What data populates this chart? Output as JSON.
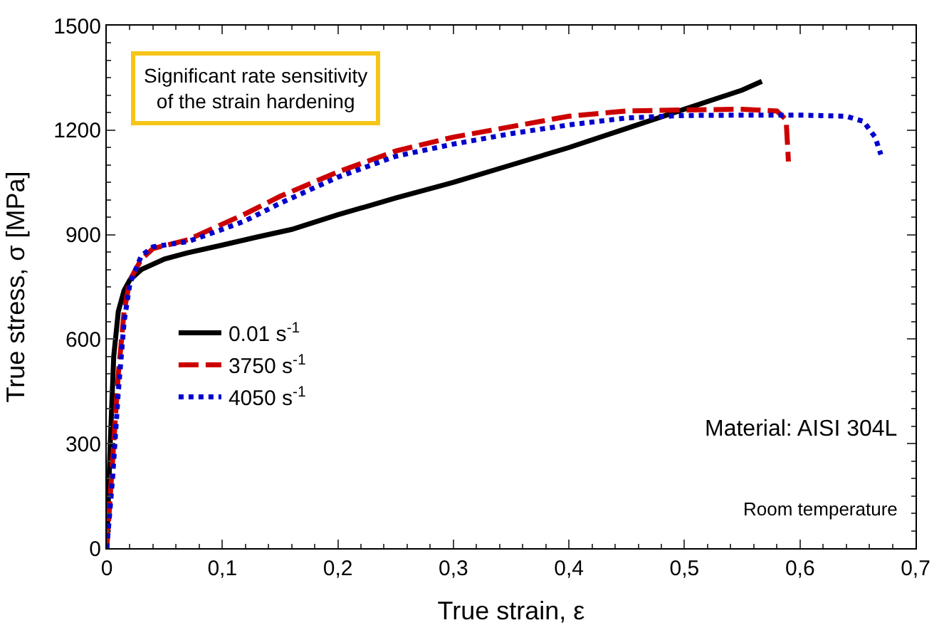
{
  "chart_data": {
    "type": "line",
    "xlabel": "True strain, ε",
    "ylabel": "True stress, σ [MPa]",
    "xlim": [
      0,
      0.7
    ],
    "ylim": [
      0,
      1500
    ],
    "xticks": [
      0,
      {
        "value": 0.1,
        "label": "0,1"
      },
      {
        "value": 0.2,
        "label": "0,2"
      },
      {
        "value": 0.3,
        "label": "0,3"
      },
      {
        "value": 0.4,
        "label": "0,4"
      },
      {
        "value": 0.5,
        "label": "0,5"
      },
      {
        "value": 0.6,
        "label": "0,6"
      },
      {
        "value": 0.7,
        "label": "0,7"
      }
    ],
    "yticks": [
      0,
      300,
      600,
      900,
      1200,
      1500
    ],
    "legend": "left",
    "marker": "none",
    "series": [
      {
        "name": "0.01 s$^{-1}$",
        "color": "#000000",
        "line_style": "solid",
        "x": [
          0,
          0.003,
          0.006,
          0.01,
          0.015,
          0.02,
          0.03,
          0.05,
          0.07,
          0.1,
          0.13,
          0.16,
          0.2,
          0.25,
          0.3,
          0.35,
          0.4,
          0.45,
          0.5,
          0.55,
          0.567
        ],
        "values": [
          0,
          300,
          550,
          680,
          740,
          770,
          800,
          830,
          848,
          870,
          893,
          915,
          957,
          1005,
          1050,
          1100,
          1150,
          1205,
          1260,
          1315,
          1340
        ]
      },
      {
        "name": "3750 s$^{-1}$",
        "color": "#cc0000",
        "line_style": "dashed",
        "x": [
          0,
          0.005,
          0.01,
          0.015,
          0.02,
          0.03,
          0.04,
          0.07,
          0.1,
          0.12,
          0.15,
          0.2,
          0.25,
          0.3,
          0.35,
          0.4,
          0.45,
          0.5,
          0.55,
          0.58,
          0.588,
          0.59
        ],
        "values": [
          0,
          250,
          500,
          680,
          770,
          830,
          860,
          885,
          930,
          960,
          1010,
          1080,
          1140,
          1180,
          1210,
          1240,
          1255,
          1258,
          1260,
          1255,
          1230,
          1110
        ]
      },
      {
        "name": "4050 s$^{-1}$",
        "color": "#0000cc",
        "line_style": "dotted",
        "x": [
          0,
          0.005,
          0.01,
          0.015,
          0.02,
          0.03,
          0.04,
          0.07,
          0.1,
          0.12,
          0.15,
          0.2,
          0.25,
          0.3,
          0.35,
          0.4,
          0.45,
          0.5,
          0.55,
          0.6,
          0.64,
          0.655,
          0.665,
          0.67
        ],
        "values": [
          0,
          200,
          450,
          650,
          760,
          840,
          865,
          880,
          915,
          940,
          990,
          1065,
          1125,
          1160,
          1190,
          1215,
          1235,
          1242,
          1243,
          1243,
          1240,
          1225,
          1180,
          1130
        ]
      }
    ],
    "annotations": [
      "Significant rate sensitivity\nof the strain hardening",
      "Material: AISI 304L",
      "Room temperature"
    ]
  }
}
